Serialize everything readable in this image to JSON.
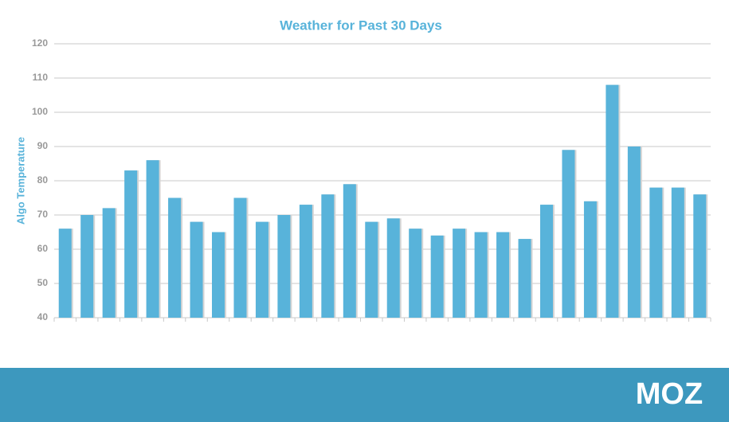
{
  "chart_data": {
    "type": "bar",
    "title": "Weather for Past 30 Days",
    "y_label": "Algo Temperature",
    "categories": [
      null,
      null,
      null,
      null,
      null,
      null,
      null,
      null,
      null,
      null,
      null,
      null,
      null,
      null,
      null,
      null,
      null,
      null,
      null,
      null,
      null,
      null,
      null,
      null,
      null,
      null,
      null,
      null,
      null,
      null
    ],
    "values": [
      66,
      70,
      72,
      83,
      86,
      75,
      68,
      65,
      75,
      68,
      70,
      73,
      76,
      79,
      68,
      69,
      66,
      64,
      66,
      65,
      65,
      63,
      73,
      89,
      74,
      108,
      90,
      78,
      78,
      76
    ],
    "color": "#58b3da",
    "ylim": [
      40,
      120
    ],
    "yticks": [
      40,
      50,
      60,
      70,
      80,
      90,
      100,
      110,
      120
    ],
    "grid": true
  },
  "footer": {
    "logo": "MOZ"
  }
}
